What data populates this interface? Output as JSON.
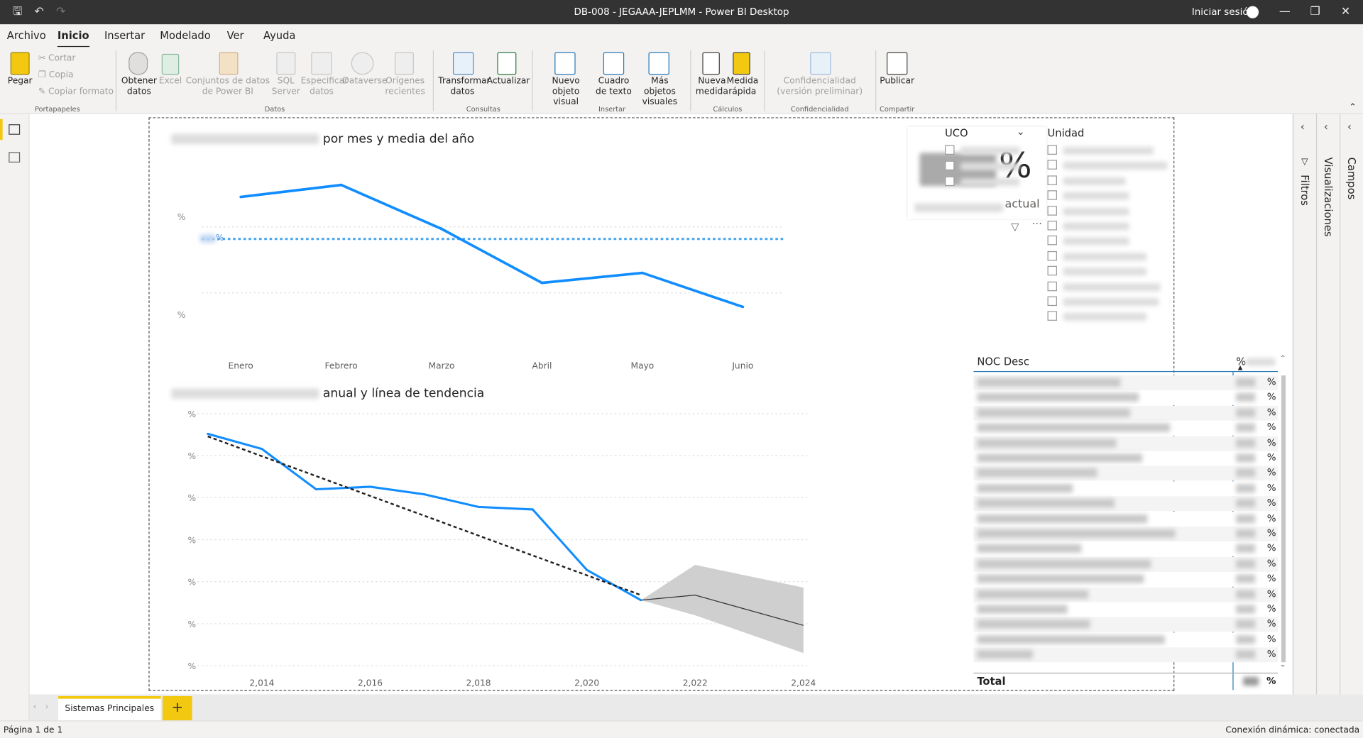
{
  "window": {
    "title": "DB-008 - JEGAAA-JEPLMM - Power BI Desktop",
    "signin": "Iniciar sesión"
  },
  "menu": [
    "Archivo",
    "Inicio",
    "Insertar",
    "Modelado",
    "Ver",
    "Ayuda"
  ],
  "ribbon": {
    "paste": "Pegar",
    "cut": "Cortar",
    "copy": "Copia",
    "format_painter": "Copiar formato",
    "clipboard_group": "Portapapeles",
    "get_data": "Obtener datos",
    "excel": "Excel",
    "datasets": "Conjuntos de datos de Power BI",
    "sql": "SQL Server",
    "enter_data": "Especificar datos",
    "dataverse": "Dataverse",
    "recent": "Orígenes recientes",
    "data_group": "Datos",
    "transform": "Transformar datos",
    "refresh": "Actualizar",
    "queries_group": "Consultas",
    "new_visual": "Nuevo objeto visual",
    "text_box": "Cuadro de texto",
    "more_visuals": "Más objetos visuales",
    "insert_group": "Insertar",
    "new_measure": "Nueva medida",
    "quick_measure": "Medida rápida",
    "calc_group": "Cálculos",
    "sensitivity": "Confidencialidad (versión preliminar)",
    "sens_group": "Confidencialidad",
    "publish": "Publicar",
    "share_group": "Compartir"
  },
  "visual1": {
    "title_suffix": "por mes y media del año",
    "avg_label": "%",
    "y_labels": [
      "%",
      "%"
    ],
    "months": [
      "Enero",
      "Febrero",
      "Marzo",
      "Abril",
      "Mayo",
      "Junio"
    ]
  },
  "visual2": {
    "title_suffix": "anual y línea de tendencia",
    "y_labels": [
      "%",
      "%",
      "%",
      "%",
      "%",
      "%",
      "%"
    ],
    "years": [
      "2,014",
      "2,016",
      "2,018",
      "2,020",
      "2,022",
      "2,024"
    ]
  },
  "kpi": {
    "symbol": "%",
    "caption": "actual"
  },
  "slicer_uco": {
    "title": "UCO",
    "items": 3
  },
  "slicer_unidad": {
    "title": "Unidad",
    "items": 12
  },
  "table": {
    "col1": "NOC Desc",
    "col2": "%",
    "row_suffix": "%",
    "total": "Total",
    "rows": 19
  },
  "panes": {
    "filters": "Filtros",
    "visualizations": "Visualizaciones",
    "fields": "Campos"
  },
  "tab": {
    "name": "Sistemas Principales",
    "add": "+"
  },
  "status": {
    "page": "Página 1 de 1",
    "connection": "Conexión dinámica: conectada"
  },
  "chart_data": [
    {
      "type": "line",
      "title": "por mes y media del año",
      "categories": [
        "Enero",
        "Febrero",
        "Marzo",
        "Abril",
        "Mayo",
        "Junio"
      ],
      "series": [
        {
          "values": [
            0.78,
            0.84,
            0.62,
            0.35,
            0.4,
            0.23
          ]
        }
      ],
      "average_line": 0.57,
      "ylim": [
        0,
        1
      ]
    },
    {
      "type": "line",
      "title": "anual y línea de tendencia",
      "x": [
        2013,
        2014,
        2015,
        2016,
        2017,
        2018,
        2019,
        2020,
        2021,
        2022,
        2024
      ],
      "series": [
        {
          "values": [
            0.92,
            0.86,
            0.7,
            0.71,
            0.68,
            0.63,
            0.62,
            0.38,
            0.26,
            null,
            null
          ]
        }
      ],
      "trend": [
        [
          2013,
          0.91
        ],
        [
          2021,
          0.28
        ]
      ],
      "forecast": [
        [
          2021,
          0.26
        ],
        [
          2022,
          0.28
        ],
        [
          2024,
          0.16
        ]
      ],
      "forecast_band": [
        [
          2021,
          0.26,
          0.26
        ],
        [
          2022,
          0.4,
          0.2
        ],
        [
          2024,
          0.31,
          0.05
        ]
      ],
      "xlim": [
        2013,
        2024
      ],
      "ylim": [
        0,
        1
      ]
    }
  ]
}
